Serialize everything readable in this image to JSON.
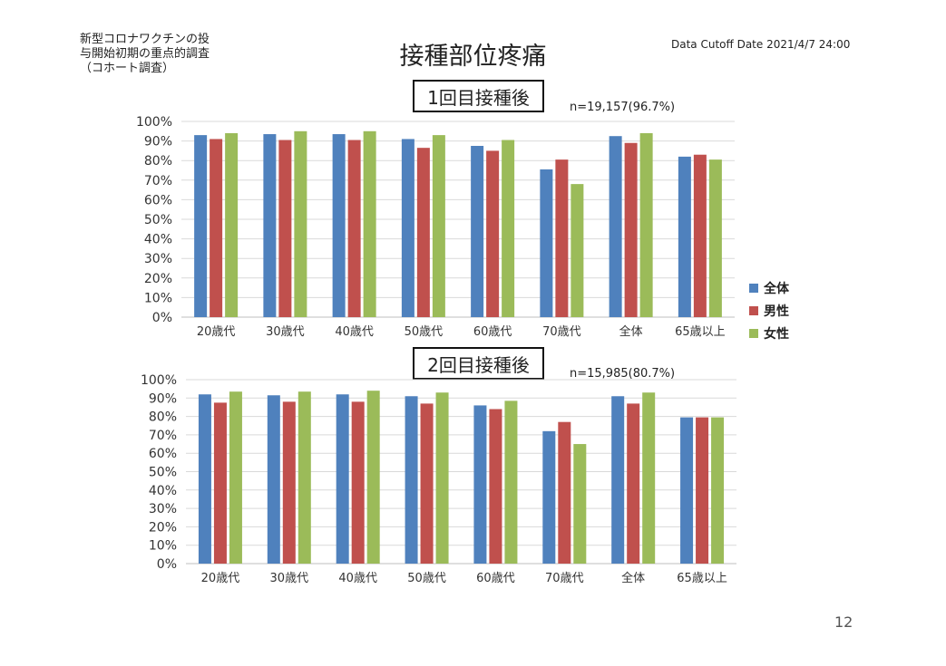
{
  "header": {
    "study_label": "新型コロナワクチンの投\n与開始初期の重点的調査\n（コホート調査）",
    "title": "接種部位疼痛",
    "cutoff": "Data Cutoff Date 2021/4/7 24:00"
  },
  "page_number": "12",
  "colors": {
    "series": [
      "#4F81BD",
      "#C0504D",
      "#9BBB59"
    ],
    "grid": "#d9d9d9"
  },
  "legend": [
    "全体",
    "男性",
    "女性"
  ],
  "chart_data": [
    {
      "type": "bar",
      "title": "1回目接種後",
      "n_label": "n=19,157(96.7%)",
      "categories": [
        "20歳代",
        "30歳代",
        "40歳代",
        "50歳代",
        "60歳代",
        "70歳代",
        "全体",
        "65歳以上"
      ],
      "yticks": [
        "0%",
        "10%",
        "20%",
        "30%",
        "40%",
        "50%",
        "60%",
        "70%",
        "80%",
        "90%",
        "100%"
      ],
      "ylim": [
        0,
        100
      ],
      "series": [
        {
          "name": "全体",
          "values": [
            93,
            93.5,
            93.5,
            91,
            87.5,
            75.5,
            92.5,
            82
          ]
        },
        {
          "name": "男性",
          "values": [
            91,
            90.5,
            90.5,
            86.5,
            85,
            80.5,
            89,
            83
          ]
        },
        {
          "name": "女性",
          "values": [
            94,
            95,
            95,
            93,
            90.5,
            68,
            94,
            80.5
          ]
        }
      ]
    },
    {
      "type": "bar",
      "title": "2回目接種後",
      "n_label": "n=15,985(80.7%)",
      "categories": [
        "20歳代",
        "30歳代",
        "40歳代",
        "50歳代",
        "60歳代",
        "70歳代",
        "全体",
        "65歳以上"
      ],
      "yticks": [
        "0%",
        "10%",
        "20%",
        "30%",
        "40%",
        "50%",
        "60%",
        "70%",
        "80%",
        "90%",
        "100%"
      ],
      "ylim": [
        0,
        100
      ],
      "series": [
        {
          "name": "全体",
          "values": [
            92,
            91.5,
            92,
            91,
            86,
            72,
            91,
            79.5
          ]
        },
        {
          "name": "男性",
          "values": [
            87.5,
            88,
            88,
            87,
            84,
            77,
            87,
            79.5
          ]
        },
        {
          "name": "女性",
          "values": [
            93.5,
            93.5,
            94,
            93,
            88.5,
            65,
            93,
            79.5
          ]
        }
      ]
    }
  ]
}
